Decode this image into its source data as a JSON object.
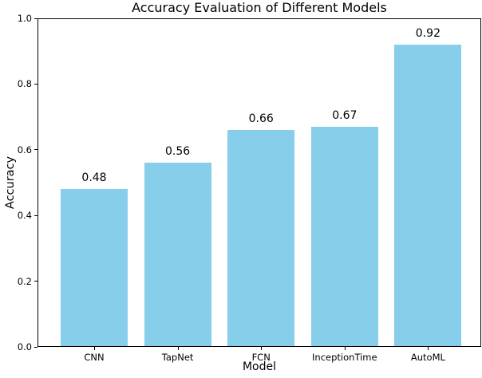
{
  "chart_data": {
    "type": "bar",
    "title": "Accuracy Evaluation of Different Models",
    "xlabel": "Model",
    "ylabel": "Accuracy",
    "categories": [
      "CNN",
      "TapNet",
      "FCN",
      "InceptionTime",
      "AutoML"
    ],
    "values": [
      0.48,
      0.56,
      0.66,
      0.67,
      0.92
    ],
    "value_labels": [
      "0.48",
      "0.56",
      "0.66",
      "0.67",
      "0.92"
    ],
    "ylim": [
      0.0,
      1.0
    ],
    "yticks": [
      0.0,
      0.2,
      0.4,
      0.6,
      0.8,
      1.0
    ],
    "ytick_labels": [
      "0.0",
      "0.2",
      "0.4",
      "0.6",
      "0.8",
      "1.0"
    ],
    "bar_color": "#87CEEB",
    "grid": false,
    "legend": null
  }
}
